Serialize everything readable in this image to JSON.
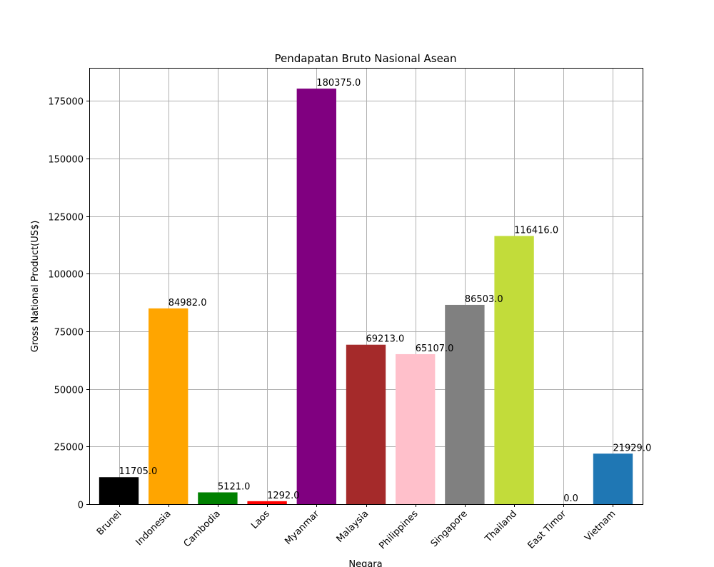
{
  "chart_data": {
    "type": "bar",
    "title": "Pendapatan Bruto Nasional Asean",
    "xlabel": "Negara",
    "ylabel": "Gross National Product(US$)",
    "categories": [
      "Brunei",
      "Indonesia",
      "Cambodia",
      "Laos",
      "Myanmar",
      "Malaysia",
      "Philippines",
      "Singapore",
      "Thailand",
      "East Timor",
      "Vietnam"
    ],
    "values": [
      11705.0,
      84982.0,
      5121.0,
      1292.0,
      180375.0,
      69213.0,
      65107.0,
      86503.0,
      116416.0,
      0.0,
      21929.0
    ],
    "value_labels": [
      "11705.0",
      "84982.0",
      "5121.0",
      "1292.0",
      "180375.0",
      "69213.0",
      "65107.0",
      "86503.0",
      "116416.0",
      "0.0",
      "21929.0"
    ],
    "colors": [
      "#000000",
      "#ffa500",
      "#008000",
      "#ff0000",
      "#800080",
      "#a52a2a",
      "#ffc0cb",
      "#808080",
      "#c2dc3a",
      "#ffffff",
      "#1f77b4"
    ],
    "ylim": [
      0,
      189395
    ],
    "yticks": [
      0,
      25000,
      50000,
      75000,
      100000,
      125000,
      150000,
      175000
    ],
    "ytick_labels": [
      "0",
      "25000",
      "50000",
      "75000",
      "100000",
      "125000",
      "150000",
      "175000"
    ],
    "grid": true,
    "legend": "none"
  }
}
